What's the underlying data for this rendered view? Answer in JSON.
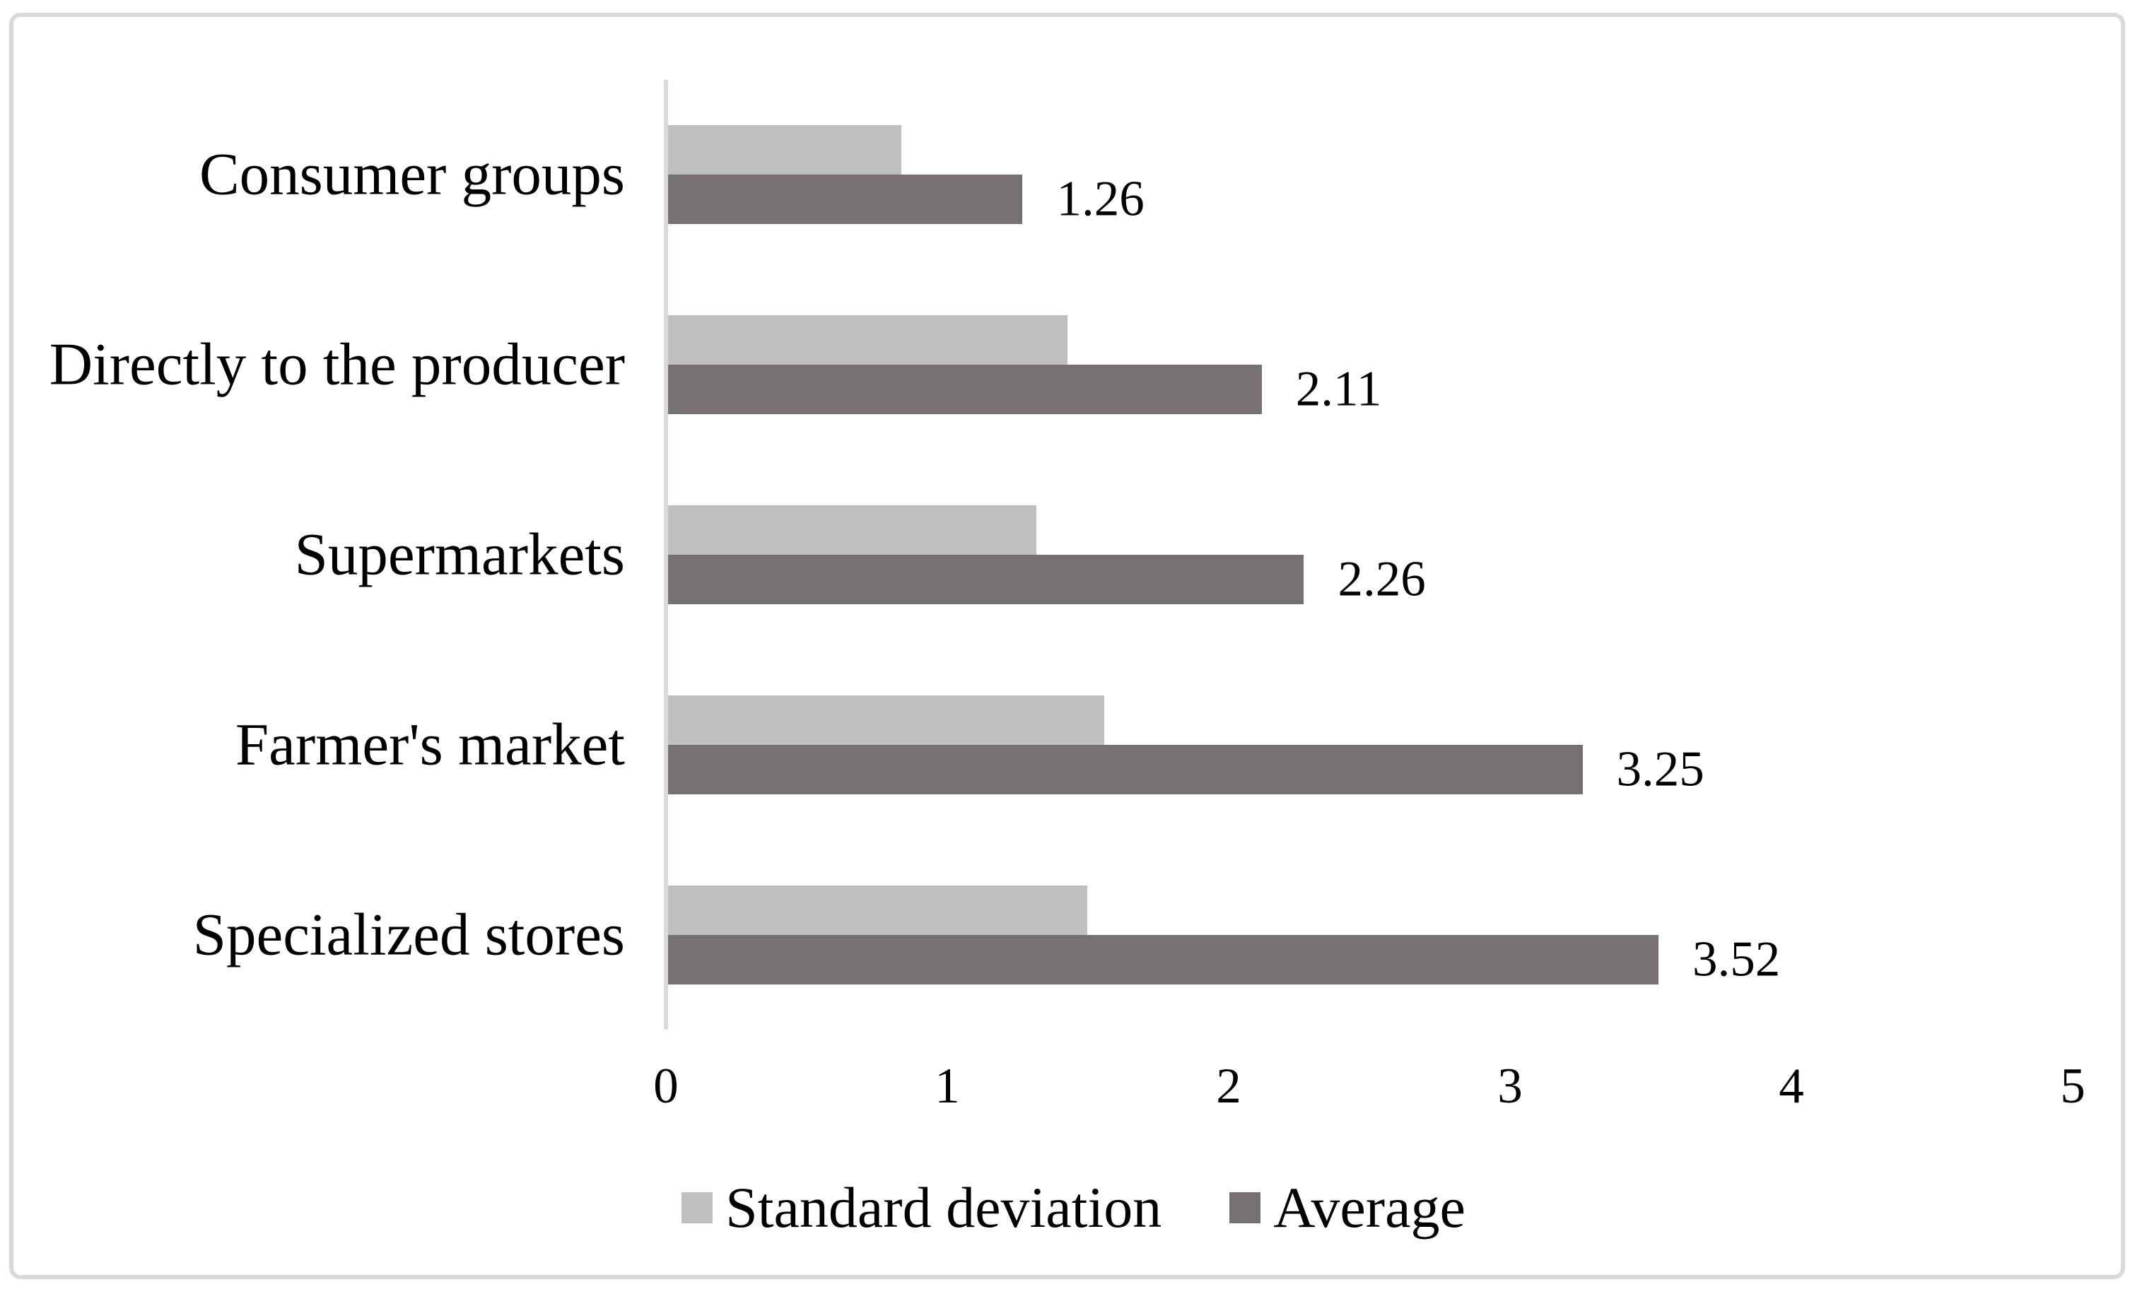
{
  "chart_data": {
    "type": "bar",
    "orientation": "horizontal",
    "title": "",
    "categories": [
      "Consumer groups",
      "Directly to the producer",
      "Supermarkets",
      "Farmer's market",
      "Specialized stores"
    ],
    "series": [
      {
        "name": "Standard deviation",
        "color": "#bfbfbf",
        "values": [
          0.83,
          1.42,
          1.31,
          1.55,
          1.49
        ],
        "data_labels": [
          "",
          "",
          "",
          "",
          ""
        ]
      },
      {
        "name": "Average",
        "color": "#767171",
        "values": [
          1.26,
          2.11,
          2.26,
          3.25,
          3.52
        ],
        "data_labels": [
          "1.26",
          "2.11",
          "2.26",
          "3.25",
          "3.52"
        ]
      }
    ],
    "x_axis": {
      "min": 0,
      "max": 5,
      "tick_labels": [
        "0",
        "1",
        "2",
        "3",
        "4",
        "5"
      ]
    },
    "grid": false,
    "legend_position": "bottom"
  },
  "colors": {
    "background": "#ffffff",
    "border": "#d9d9d9",
    "axis_line": "#d9d9d9",
    "text": "#000000",
    "series_standard_deviation": "#bfbfbf",
    "series_average": "#767171"
  }
}
